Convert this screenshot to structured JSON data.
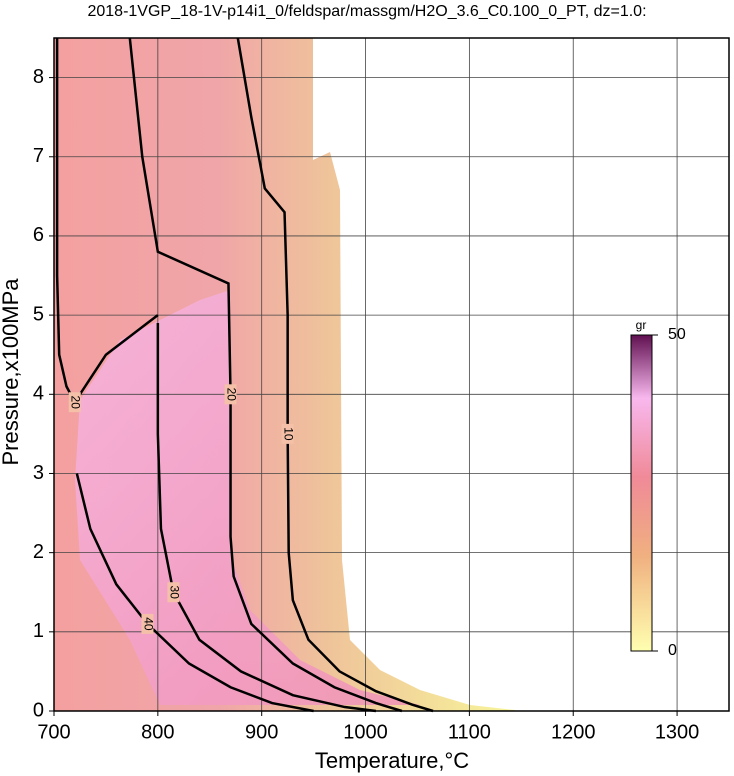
{
  "chart_data": {
    "type": "contour",
    "title": "2018-1VGP_18-1V-p14i1_0/feldspar/massgm/H2O_3.6_C0.100_0_PT, dz=1.0:",
    "xlabel": "Temperature,°C",
    "ylabel": "Pressure,x100MPa",
    "xlim": [
      700,
      1350
    ],
    "ylim": [
      0,
      8.5
    ],
    "xticks": [
      700,
      800,
      900,
      1000,
      1100,
      1200,
      1300
    ],
    "yticks": [
      0,
      1,
      2,
      3,
      4,
      5,
      6,
      7,
      8
    ],
    "grid": true,
    "contours": [
      {
        "level": 10,
        "x": [
          877,
          890,
          903,
          922,
          925,
          925,
          926,
          930,
          945,
          975,
          1010,
          1045,
          1065
        ],
        "y": [
          8.5,
          7.5,
          6.6,
          6.3,
          5,
          3.5,
          2,
          1.4,
          0.9,
          0.5,
          0.25,
          0.08,
          0
        ]
      },
      {
        "level": 20,
        "x": [
          773,
          785,
          800,
          868,
          870,
          870,
          873,
          890,
          930,
          970,
          1010,
          1035
        ],
        "y": [
          8.5,
          7,
          5.8,
          5.4,
          4,
          2.2,
          1.7,
          1.1,
          0.6,
          0.3,
          0.1,
          0
        ]
      },
      {
        "level": 20,
        "x": [
          703,
          703,
          705,
          712,
          720,
          730,
          750,
          770,
          790,
          800
        ],
        "y": [
          8.5,
          5.5,
          4.5,
          4.1,
          3.9,
          4.1,
          4.5,
          4.7,
          4.9,
          5.0
        ]
      },
      {
        "level": 30,
        "x": [
          800,
          800,
          803,
          815,
          840,
          880,
          930,
          980,
          1010
        ],
        "y": [
          4.9,
          3.5,
          2.3,
          1.5,
          0.9,
          0.5,
          0.2,
          0.05,
          0
        ]
      },
      {
        "level": 40,
        "x": [
          722,
          735,
          760,
          790,
          830,
          870,
          910,
          950
        ],
        "y": [
          3.0,
          2.3,
          1.6,
          1.1,
          0.6,
          0.3,
          0.1,
          0
        ]
      }
    ],
    "colorbar": {
      "label": "gr",
      "lim": [
        0,
        50
      ],
      "ticks": [
        0,
        50
      ]
    }
  }
}
